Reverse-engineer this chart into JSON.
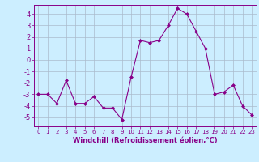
{
  "x": [
    0,
    1,
    2,
    3,
    4,
    5,
    6,
    7,
    8,
    9,
    10,
    11,
    12,
    13,
    14,
    15,
    16,
    17,
    18,
    19,
    20,
    21,
    22,
    23
  ],
  "y": [
    -3,
    -3,
    -3.8,
    -1.8,
    -3.8,
    -3.8,
    -3.2,
    -4.2,
    -4.2,
    -5.2,
    -1.5,
    1.7,
    1.5,
    1.7,
    3.0,
    4.5,
    4.0,
    2.5,
    1.0,
    -3.0,
    -2.8,
    -2.2,
    -4.0,
    -4.8
  ],
  "line_color": "#880088",
  "marker": "D",
  "marker_size": 2.0,
  "bg_color": "#cceeff",
  "grid_color": "#aabbcc",
  "xlabel": "Windchill (Refroidissement éolien,°C)",
  "xlim": [
    -0.5,
    23.5
  ],
  "ylim": [
    -5.8,
    4.8
  ],
  "yticks": [
    -5,
    -4,
    -3,
    -2,
    -1,
    0,
    1,
    2,
    3,
    4
  ],
  "xticks": [
    0,
    1,
    2,
    3,
    4,
    5,
    6,
    7,
    8,
    9,
    10,
    11,
    12,
    13,
    14,
    15,
    16,
    17,
    18,
    19,
    20,
    21,
    22,
    23
  ],
  "tick_color": "#880088",
  "label_color": "#880088",
  "spine_color": "#880088",
  "xlabel_fontsize": 6.0,
  "xlabel_fontweight": "bold",
  "ytick_fontsize": 6.0,
  "xtick_fontsize": 5.0
}
